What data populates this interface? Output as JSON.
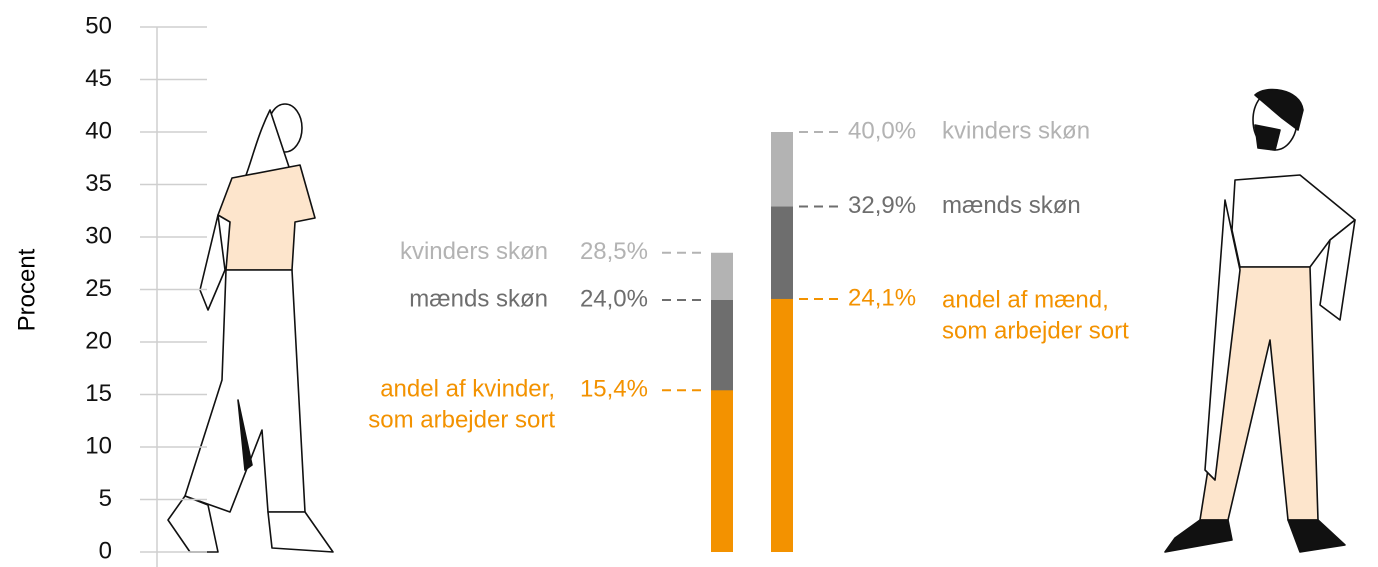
{
  "chart_data": {
    "type": "bar",
    "ylabel": "Procent",
    "categories": [
      null,
      null
    ],
    "ylim": [
      0,
      50
    ],
    "yticks": [
      0,
      5,
      10,
      15,
      20,
      25,
      30,
      35,
      40,
      45,
      50
    ],
    "grid": true,
    "series": [
      {
        "name": "kvinders skøn",
        "color": "#b3b3b3",
        "values": [
          28.5,
          40.0
        ],
        "value_labels": [
          "28,5%",
          "40,0%"
        ]
      },
      {
        "name": "mænds skøn",
        "color": "#6e6e6e",
        "values": [
          24.0,
          32.9
        ],
        "value_labels": [
          "24,0%",
          "32,9%"
        ]
      },
      {
        "color": "#f39200",
        "values": [
          15.4,
          24.1
        ],
        "value_labels": [
          "15,4%",
          "24,1%"
        ],
        "labels": [
          [
            "andel af kvinder,",
            "som arbejder sort"
          ],
          [
            "andel af mænd,",
            "som arbejder sort"
          ]
        ]
      }
    ]
  }
}
